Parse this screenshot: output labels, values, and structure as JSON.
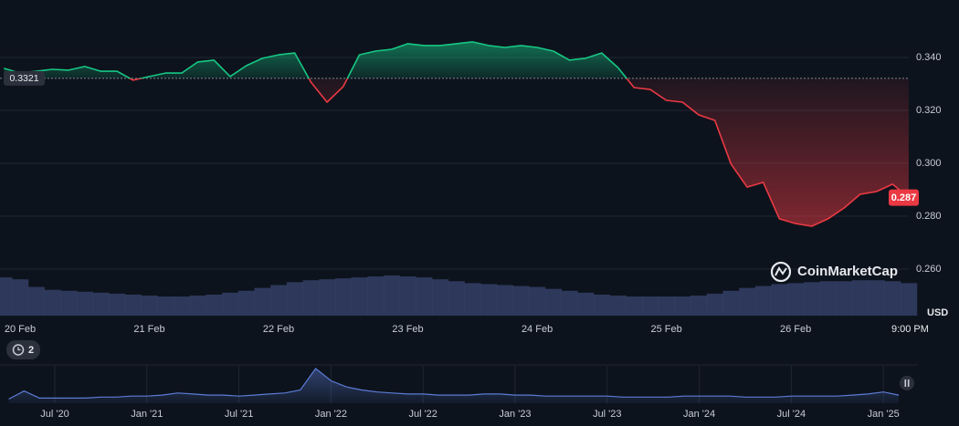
{
  "chart_data": {
    "type": "line",
    "categories": [
      null,
      "20 Feb",
      null,
      null,
      null,
      null,
      null,
      null,
      null,
      "21 Feb",
      null,
      null,
      null,
      null,
      null,
      null,
      null,
      "22 Feb",
      null,
      null,
      null,
      null,
      null,
      null,
      null,
      "23 Feb",
      null,
      null,
      null,
      null,
      null,
      null,
      null,
      "24 Feb",
      null,
      null,
      null,
      null,
      null,
      null,
      null,
      "25 Feb",
      null,
      null,
      null,
      null,
      null,
      null,
      null,
      "26 Feb",
      null,
      null,
      null,
      null,
      null,
      null,
      "9:00 PM"
    ],
    "values": [
      0.3359,
      0.3341,
      0.3348,
      0.3355,
      0.3352,
      0.3366,
      0.3348,
      0.3348,
      0.3314,
      0.3328,
      0.3341,
      0.3341,
      0.3383,
      0.339,
      0.3328,
      0.3369,
      0.3397,
      0.341,
      0.3417,
      0.3307,
      0.3231,
      0.329,
      0.341,
      0.3424,
      0.3431,
      0.3452,
      0.3445,
      0.3445,
      0.3452,
      0.3459,
      0.3445,
      0.3438,
      0.3445,
      0.3438,
      0.3424,
      0.339,
      0.3397,
      0.3417,
      0.3362,
      0.3286,
      0.3279,
      0.3238,
      0.3231,
      0.3183,
      0.3162,
      0.2997,
      0.291,
      0.2928,
      0.279,
      0.2772,
      0.2762,
      0.279,
      0.2831,
      0.2883,
      0.2893,
      0.2921,
      0.287
    ],
    "baseline": 0.3321,
    "ylim": [
      0.2424,
      0.36
    ],
    "yticks": [
      {
        "value": 0.26,
        "label": "0.260"
      },
      {
        "value": 0.28,
        "label": "0.280"
      },
      {
        "value": 0.3,
        "label": "0.300"
      },
      {
        "value": 0.32,
        "label": "0.320"
      },
      {
        "value": 0.34,
        "label": "0.340"
      }
    ],
    "grid": true,
    "colors": {
      "up": "#16c784",
      "down": "#ea3943",
      "volume": "#3a4670",
      "navigator": "#5b7bd5"
    },
    "unit": "USD",
    "watermark": "CoinMarketCap",
    "volume": [
      40,
      38,
      30,
      27,
      26,
      25,
      24,
      23,
      22,
      21,
      20,
      20,
      21,
      22,
      24,
      26,
      29,
      32,
      35,
      37,
      38,
      39,
      40,
      41,
      42,
      41,
      40,
      38,
      36,
      34,
      33,
      32,
      31,
      30,
      28,
      26,
      24,
      22,
      21,
      20,
      20,
      20,
      20,
      21,
      23,
      26,
      29,
      31,
      33,
      34,
      35,
      36,
      36,
      37,
      37,
      36,
      34
    ],
    "alerts": 2,
    "navigator": {
      "categories": [
        null,
        null,
        null,
        "Jul '20",
        null,
        null,
        null,
        null,
        null,
        "Jan '21",
        null,
        null,
        null,
        null,
        null,
        "Jul '21",
        null,
        null,
        null,
        null,
        null,
        "Jan '22",
        null,
        null,
        null,
        null,
        null,
        "Jul '22",
        null,
        null,
        null,
        null,
        null,
        "Jan '23",
        null,
        null,
        null,
        null,
        null,
        "Jul '23",
        null,
        null,
        null,
        null,
        null,
        "Jan '24",
        null,
        null,
        null,
        null,
        null,
        "Jul '24",
        null,
        null,
        null,
        null,
        null,
        "Jan '25",
        null
      ],
      "values": [
        4,
        12,
        5,
        5,
        5,
        5,
        6,
        6,
        7,
        7,
        8,
        10,
        9,
        8,
        8,
        7,
        8,
        9,
        10,
        13,
        34,
        22,
        16,
        13,
        11,
        10,
        9,
        9,
        8,
        8,
        8,
        9,
        9,
        8,
        8,
        7,
        7,
        7,
        7,
        7,
        6,
        6,
        6,
        6,
        7,
        7,
        7,
        7,
        6,
        6,
        6,
        7,
        7,
        7,
        7,
        8,
        9,
        11,
        8
      ]
    }
  }
}
